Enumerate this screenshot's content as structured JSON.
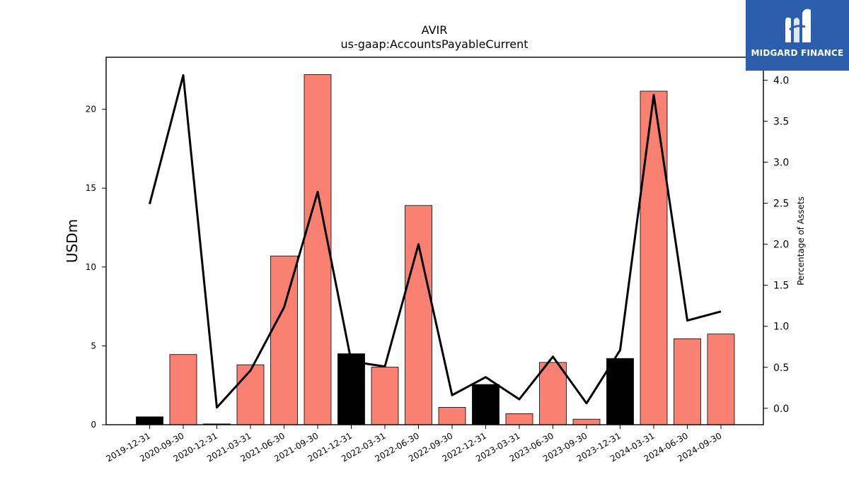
{
  "chart_data": {
    "type": "bar",
    "title": "AVIR",
    "subtitle": "us-gaap:AccountsPayableCurrent",
    "ylabel": "USDm",
    "y2label": "Percentage of Assets",
    "ylim": [
      0,
      23.3
    ],
    "y2lim": [
      -0.2,
      4.28
    ],
    "yticks": [
      0,
      5,
      10,
      15,
      20
    ],
    "y2ticks": [
      0.0,
      0.5,
      1.0,
      1.5,
      2.0,
      2.5,
      3.0,
      3.5,
      4.0
    ],
    "y2tick_labels": [
      "0.0",
      "0.5",
      "1.0",
      "1.5",
      "2.0",
      "2.5",
      "3.0",
      "3.5",
      "4.0"
    ],
    "grid": false,
    "categories": [
      "2019-12-31",
      "2020-09-30",
      "2020-12-31",
      "2021-03-31",
      "2021-06-30",
      "2021-09-30",
      "2021-12-31",
      "2022-03-31",
      "2022-06-30",
      "2022-09-30",
      "2022-12-31",
      "2023-03-31",
      "2023-06-30",
      "2023-09-30",
      "2023-12-31",
      "2024-03-31",
      "2024-06-30",
      "2024-09-30"
    ],
    "series": [
      {
        "type": "bar",
        "axis": "left",
        "values": [
          0.5,
          4.45,
          0.05,
          3.8,
          10.7,
          22.2,
          4.5,
          3.65,
          13.9,
          1.1,
          2.55,
          0.7,
          3.95,
          0.35,
          4.2,
          21.15,
          5.45,
          5.75
        ],
        "colors": [
          "#000000",
          "#fa8072",
          "#000000",
          "#fa8072",
          "#fa8072",
          "#fa8072",
          "#000000",
          "#fa8072",
          "#fa8072",
          "#fa8072",
          "#000000",
          "#fa8072",
          "#fa8072",
          "#fa8072",
          "#000000",
          "#fa8072",
          "#fa8072",
          "#fa8072"
        ]
      },
      {
        "type": "line",
        "axis": "right",
        "color": "#000000",
        "values": [
          2.49,
          4.06,
          0.01,
          0.46,
          1.23,
          2.64,
          0.57,
          0.51,
          2.0,
          0.16,
          0.38,
          0.11,
          0.63,
          0.06,
          0.71,
          3.82,
          1.07,
          1.18
        ]
      }
    ]
  },
  "logo": {
    "text": "MIDGARD FINANCE",
    "background": "#2b5fad"
  }
}
